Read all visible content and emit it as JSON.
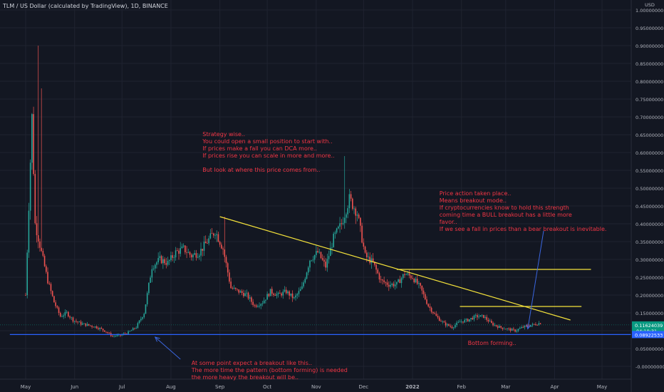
{
  "header": {
    "title": "TLM / US Dollar (calculated by TradingView), 1D, BINANCE"
  },
  "colors": {
    "background": "#131722",
    "grid": "#1f2330",
    "axis_text": "#b2b5be",
    "up": "#26a69a",
    "down": "#ef5350",
    "trendline": "#f5e33b",
    "support": "#2962ff",
    "arrow": "#3a66e0",
    "annotation": "#f23645",
    "price_label": "#089981",
    "support_label": "#2962ff"
  },
  "chart_data": {
    "type": "candlestick",
    "symbol": "TLM / US Dollar",
    "timeframe": "1D",
    "exchange": "BINANCE",
    "currency": "USD",
    "grid": true,
    "x_ticks": [
      "May",
      "Jun",
      "Jul",
      "Aug",
      "Sep",
      "Oct",
      "Nov",
      "Dec",
      "2022",
      "Feb",
      "Mar",
      "Apr",
      "May"
    ],
    "x_tick_days": [
      0,
      31,
      61,
      92,
      123,
      153,
      184,
      214,
      245,
      276,
      304,
      335,
      365
    ],
    "y_ticks": [
      "1.00000000",
      "0.95000000",
      "0.90000000",
      "0.85000000",
      "0.80000000",
      "0.75000000",
      "0.70000000",
      "0.65000000",
      "0.60000000",
      "0.55000000",
      "0.50000000",
      "0.45000000",
      "0.40000000",
      "0.35000000",
      "0.30000000",
      "0.25000000",
      "0.20000000",
      "0.15000000",
      "0.10000000",
      "0.05000000",
      "-0.00000000"
    ],
    "ylim": [
      -0.03,
      1.0
    ],
    "price_path": [
      [
        0,
        0.2
      ],
      [
        4,
        0.7
      ],
      [
        6,
        0.4
      ],
      [
        10,
        0.32
      ],
      [
        14,
        0.24
      ],
      [
        18,
        0.18
      ],
      [
        22,
        0.14
      ],
      [
        26,
        0.15
      ],
      [
        30,
        0.13
      ],
      [
        35,
        0.12
      ],
      [
        40,
        0.115
      ],
      [
        45,
        0.11
      ],
      [
        50,
        0.1
      ],
      [
        55,
        0.085
      ],
      [
        60,
        0.087
      ],
      [
        65,
        0.095
      ],
      [
        70,
        0.11
      ],
      [
        75,
        0.15
      ],
      [
        80,
        0.28
      ],
      [
        85,
        0.3
      ],
      [
        90,
        0.29
      ],
      [
        95,
        0.32
      ],
      [
        100,
        0.33
      ],
      [
        105,
        0.31
      ],
      [
        110,
        0.32
      ],
      [
        115,
        0.35
      ],
      [
        120,
        0.38
      ],
      [
        125,
        0.33
      ],
      [
        130,
        0.22
      ],
      [
        135,
        0.21
      ],
      [
        140,
        0.2
      ],
      [
        145,
        0.17
      ],
      [
        150,
        0.18
      ],
      [
        155,
        0.21
      ],
      [
        160,
        0.2
      ],
      [
        165,
        0.21
      ],
      [
        170,
        0.19
      ],
      [
        175,
        0.22
      ],
      [
        180,
        0.3
      ],
      [
        185,
        0.32
      ],
      [
        190,
        0.28
      ],
      [
        195,
        0.36
      ],
      [
        200,
        0.4
      ],
      [
        205,
        0.47
      ],
      [
        210,
        0.43
      ],
      [
        215,
        0.31
      ],
      [
        220,
        0.29
      ],
      [
        225,
        0.24
      ],
      [
        230,
        0.23
      ],
      [
        235,
        0.23
      ],
      [
        240,
        0.26
      ],
      [
        245,
        0.25
      ],
      [
        250,
        0.22
      ],
      [
        255,
        0.17
      ],
      [
        260,
        0.14
      ],
      [
        265,
        0.12
      ],
      [
        270,
        0.11
      ],
      [
        275,
        0.125
      ],
      [
        280,
        0.13
      ],
      [
        285,
        0.14
      ],
      [
        290,
        0.14
      ],
      [
        295,
        0.12
      ],
      [
        300,
        0.11
      ],
      [
        305,
        0.105
      ],
      [
        310,
        0.1
      ],
      [
        315,
        0.11
      ],
      [
        320,
        0.115
      ],
      [
        326,
        0.122
      ]
    ],
    "price_extremes": [
      {
        "day": 8,
        "high": 0.9
      },
      {
        "day": 10,
        "high": 0.78
      },
      {
        "day": 202,
        "high": 0.59
      },
      {
        "day": 126,
        "high": 0.42
      }
    ],
    "trendlines": [
      {
        "name": "descending resistance",
        "from": [
          123,
          0.42
        ],
        "to": [
          345,
          0.13
        ]
      },
      {
        "name": "horizontal resistance",
        "from": [
          235,
          0.272
        ],
        "to": [
          358,
          0.272
        ]
      },
      {
        "name": "range high",
        "from": [
          275,
          0.168
        ],
        "to": [
          352,
          0.168
        ]
      },
      {
        "name": "support",
        "from": [
          -10,
          0.0893
        ],
        "to": [
          400,
          0.0893
        ]
      }
    ],
    "arrows": [
      {
        "from": [
          98,
          0.02
        ],
        "to": [
          82,
          0.082
        ]
      },
      {
        "from": [
          328,
          0.38
        ],
        "to": [
          318,
          0.105
        ]
      }
    ],
    "price_labels": [
      {
        "kind": "last",
        "value": 0.11624039,
        "text": "0.11624039",
        "countdown": "04:19:31"
      },
      {
        "kind": "support",
        "value": 0.08922533,
        "text": "0.08922533"
      }
    ],
    "annotations": [
      {
        "anchor": [
          112,
          0.66
        ],
        "lines": [
          "Strategy wise..",
          "You could open a small position to start with..",
          "If prices make a fall you can DCA more..",
          "If prices rise you can scale in more and more..",
          "",
          "But look at where this price comes from.."
        ]
      },
      {
        "anchor": [
          262,
          0.495
        ],
        "lines": [
          "Price action taken place..",
          "Means breakout mode..",
          "If cryptocurrencies know to hold this strength",
          "coming time a BULL breakout has a little more",
          "favor..",
          "If we see a fall in prices than a bear breakout is inevitable."
        ]
      },
      {
        "anchor": [
          280,
          0.075
        ],
        "lines": [
          "Bottom forming.."
        ]
      },
      {
        "anchor": [
          105,
          0.018
        ],
        "lines": [
          "At some point expect a breakout like this..",
          "The more time the pattern (bottom forming) is needed",
          "the more heavy the breakout will be.."
        ]
      }
    ]
  }
}
